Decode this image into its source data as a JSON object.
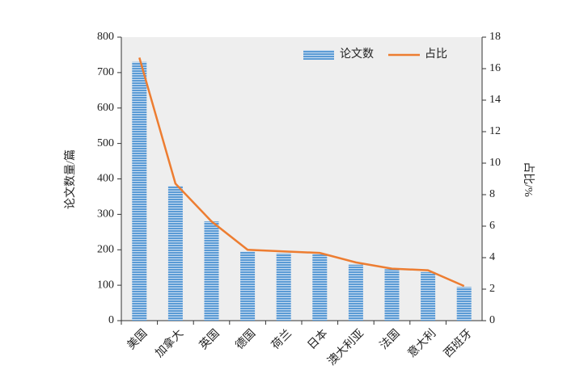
{
  "chart_data": {
    "type": "bar",
    "categories": [
      "美国",
      "加拿大",
      "英国",
      "德国",
      "荷兰",
      "日本",
      "澳大利亚",
      "法国",
      "意大利",
      "西班牙"
    ],
    "series": [
      {
        "name": "论文数",
        "color": "#5b9bd5",
        "values": [
          730,
          380,
          280,
          195,
          190,
          188,
          158,
          145,
          137,
          95
        ]
      },
      {
        "name": "占比",
        "color": "#ed7d31",
        "type": "line",
        "axis": "y2",
        "values": [
          16.7,
          8.7,
          6.3,
          4.5,
          4.4,
          4.3,
          3.7,
          3.3,
          3.2,
          2.2
        ]
      }
    ],
    "y_label": "论文数量/篇",
    "y2_label": "占比/%",
    "ylim": [
      0,
      800
    ],
    "yticks": [
      0,
      100,
      200,
      300,
      400,
      500,
      600,
      700,
      800
    ],
    "y2lim": [
      0,
      18
    ],
    "y2ticks": [
      0,
      2,
      4,
      6,
      8,
      10,
      12,
      14,
      16,
      18
    ],
    "legend": "top-right"
  }
}
